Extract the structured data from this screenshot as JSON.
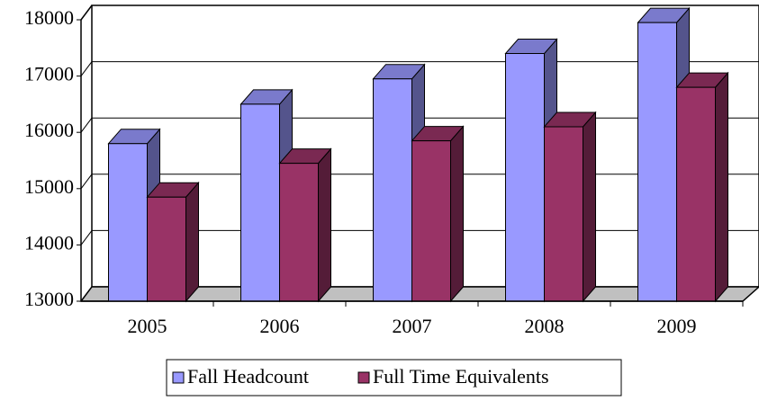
{
  "chart_data": {
    "type": "bar3d",
    "categories": [
      "2005",
      "2006",
      "2007",
      "2008",
      "2009"
    ],
    "series": [
      {
        "name": "Fall Headcount",
        "color": "#9999ff",
        "values": [
          15800,
          16500,
          16950,
          17400,
          17950
        ]
      },
      {
        "name": "Full Time Equivalents",
        "color": "#993366",
        "values": [
          14850,
          15450,
          15850,
          16100,
          16800
        ]
      }
    ],
    "ylim": [
      13000,
      18000
    ],
    "yticks": [
      13000,
      14000,
      15000,
      16000,
      17000,
      18000
    ],
    "grid": true,
    "legend": "bottom"
  }
}
